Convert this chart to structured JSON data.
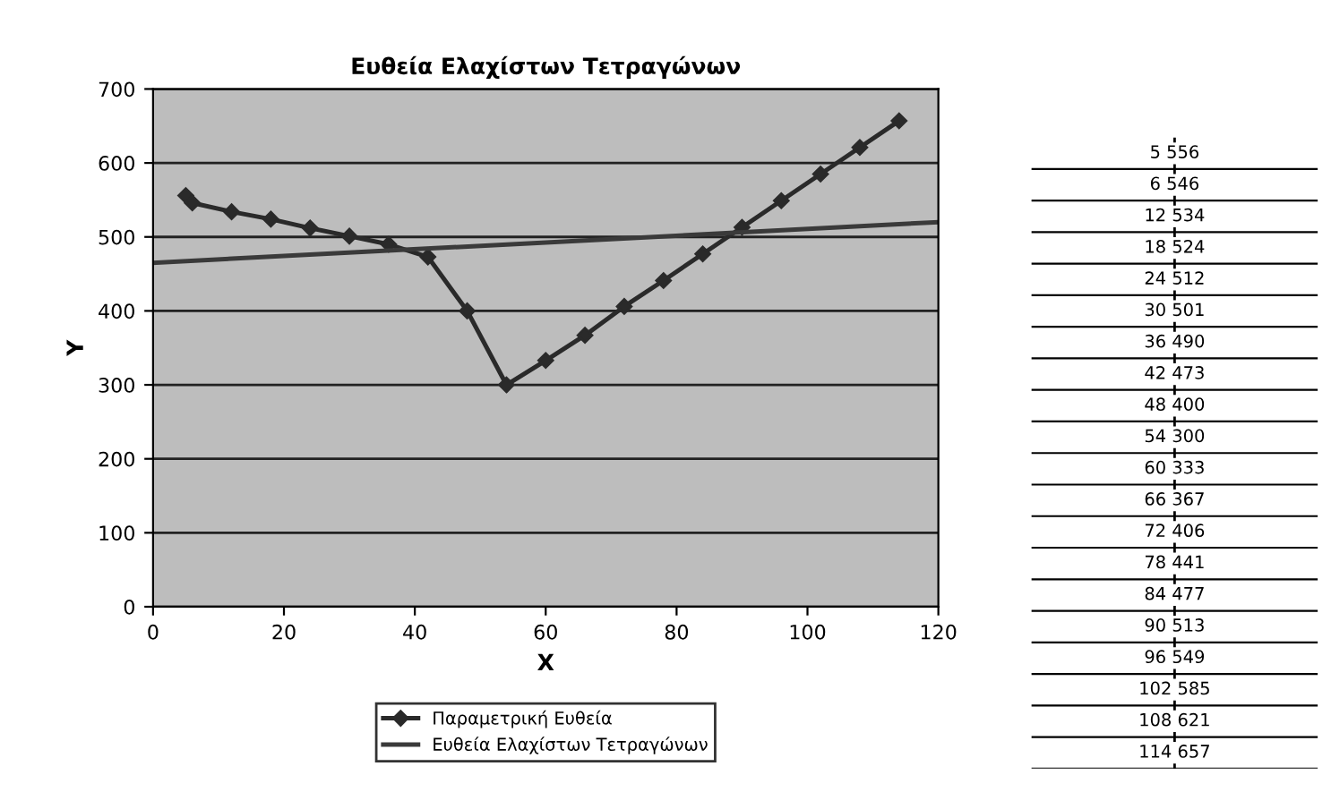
{
  "chart_data": [
    {
      "type": "line",
      "title": "Ευθεία Ελαχίστων Τετραγώνων",
      "xlabel": "X",
      "ylabel": "Y",
      "x": [
        5,
        6,
        12,
        18,
        24,
        30,
        36,
        42,
        48,
        54,
        60,
        66,
        72,
        78,
        84,
        90,
        96,
        102,
        108,
        114
      ],
      "series": [
        {
          "name": "Παραμετρική Ευθεία",
          "color": "#2a2a2a",
          "marker": "diamond",
          "values": [
            556,
            546,
            534,
            524,
            512,
            501,
            490,
            473,
            400,
            300,
            333,
            367,
            406,
            441,
            477,
            513,
            549,
            585,
            621,
            657
          ]
        },
        {
          "name": "Ευθεία Ελαχίστων Τετραγώνων",
          "color": "#3a3a3a",
          "marker": "none",
          "x": [
            0,
            120
          ],
          "values": [
            465,
            520
          ]
        }
      ],
      "xlim": [
        0,
        120
      ],
      "xticks": [
        0,
        20,
        40,
        60,
        80,
        100,
        120
      ],
      "ylim": [
        0,
        700
      ],
      "yticks": [
        0,
        100,
        200,
        300,
        400,
        500,
        600,
        700
      ],
      "grid": "y",
      "legend": "bottom"
    },
    {
      "type": "other",
      "annotations": [
        "5 556",
        "6 546",
        "12 534",
        "18 524",
        "24 512",
        "30 501",
        "36 490",
        "42 473",
        "48 400",
        "54 300",
        "60 333",
        "66 367",
        "72 406",
        "78 441",
        "84 477",
        "90 513",
        "96 549",
        "102 585",
        "108 621",
        "114 657"
      ]
    }
  ]
}
